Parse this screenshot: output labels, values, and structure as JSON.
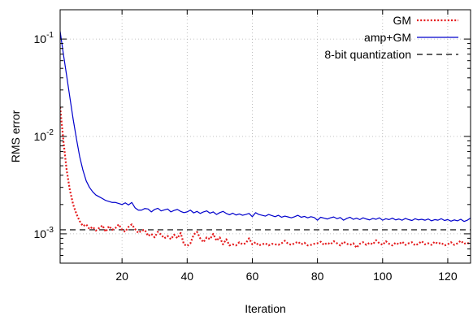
{
  "chart_data": {
    "type": "line",
    "title": "",
    "xlabel": "Iteration",
    "ylabel": "RMS error",
    "x_scale": "linear",
    "y_scale": "log",
    "xlim": [
      1,
      127
    ],
    "ylim": [
      0.0005,
      0.2
    ],
    "x_ticks": [
      20,
      40,
      60,
      80,
      100,
      120
    ],
    "x_tick_labels": [
      "20",
      "40",
      "60",
      "80",
      "100",
      "120"
    ],
    "y_ticks": [
      0.001,
      0.01,
      0.1
    ],
    "y_tick_labels": [
      {
        "base": "10",
        "exp": "-3"
      },
      {
        "base": "10",
        "exp": "-2"
      },
      {
        "base": "10",
        "exp": "-1"
      }
    ],
    "grid": true,
    "legend_position": "top-right",
    "series": [
      {
        "name": "GM",
        "color": "#e41a1c",
        "style": "dotted",
        "x": [
          1,
          2,
          3,
          4,
          5,
          6,
          7,
          8,
          9,
          10,
          11,
          12,
          13,
          14,
          15,
          16,
          17,
          18,
          19,
          20,
          21,
          22,
          23,
          24,
          25,
          26,
          27,
          28,
          29,
          30,
          31,
          32,
          33,
          34,
          35,
          36,
          37,
          38,
          39,
          40,
          41,
          42,
          43,
          44,
          45,
          46,
          47,
          48,
          49,
          50,
          51,
          52,
          53,
          54,
          55,
          56,
          57,
          58,
          59,
          60,
          61,
          62,
          63,
          64,
          65,
          66,
          67,
          68,
          69,
          70,
          71,
          72,
          73,
          74,
          75,
          76,
          77,
          78,
          79,
          80,
          81,
          82,
          83,
          84,
          85,
          86,
          87,
          88,
          89,
          90,
          91,
          92,
          93,
          94,
          95,
          96,
          97,
          98,
          99,
          100,
          101,
          102,
          103,
          104,
          105,
          106,
          107,
          108,
          109,
          110,
          111,
          112,
          113,
          114,
          115,
          116,
          117,
          118,
          119,
          120,
          121,
          122,
          123,
          124,
          125,
          126,
          127
        ],
        "values": [
          0.02,
          0.009,
          0.0045,
          0.0028,
          0.002,
          0.0016,
          0.00135,
          0.0012,
          0.00125,
          0.00112,
          0.00118,
          0.00108,
          0.00115,
          0.00122,
          0.00105,
          0.0012,
          0.0011,
          0.00115,
          0.00125,
          0.0011,
          0.00105,
          0.00118,
          0.00125,
          0.00112,
          0.00102,
          0.00108,
          0.0011,
          0.00095,
          0.001,
          0.00092,
          0.00105,
          0.00098,
          0.0009,
          0.00095,
          0.00088,
          0.00098,
          0.0009,
          0.00102,
          0.00078,
          0.00075,
          0.0008,
          0.00098,
          0.00105,
          0.0009,
          0.00082,
          0.00092,
          0.00088,
          0.001,
          0.00085,
          0.00092,
          0.00078,
          0.00088,
          0.00076,
          0.00078,
          0.00076,
          0.00082,
          0.00078,
          0.0008,
          0.0009,
          0.00078,
          0.00082,
          0.00076,
          0.00078,
          0.0008,
          0.00076,
          0.00079,
          0.00078,
          0.00077,
          0.0008,
          0.00085,
          0.00079,
          0.00077,
          0.0008,
          0.00083,
          0.00078,
          0.00081,
          0.00076,
          0.00077,
          0.00079,
          0.0008,
          0.00083,
          0.00077,
          0.00081,
          0.00078,
          0.00084,
          0.0008,
          0.00076,
          0.00083,
          0.00079,
          0.00077,
          0.0008,
          0.00072,
          0.00079,
          0.00082,
          0.00077,
          0.00081,
          0.00078,
          0.00086,
          0.0008,
          0.00077,
          0.00084,
          0.00079,
          0.00076,
          0.00081,
          0.00078,
          0.00083,
          0.00077,
          0.0008,
          0.00082,
          0.00076,
          0.00079,
          0.00084,
          0.00078,
          0.0008,
          0.00077,
          0.00083,
          0.00079,
          0.00081,
          0.00076,
          0.00078,
          0.00082,
          0.00077,
          0.0008,
          0.00085,
          0.00079,
          0.00081,
          0.00078
        ]
      },
      {
        "name": "amp+GM",
        "color": "#0000cc",
        "style": "solid",
        "x": [
          1,
          2,
          3,
          4,
          5,
          6,
          7,
          8,
          9,
          10,
          11,
          12,
          13,
          14,
          15,
          16,
          17,
          18,
          19,
          20,
          21,
          22,
          23,
          24,
          25,
          26,
          27,
          28,
          29,
          30,
          31,
          32,
          33,
          34,
          35,
          36,
          37,
          38,
          39,
          40,
          41,
          42,
          43,
          44,
          45,
          46,
          47,
          48,
          49,
          50,
          51,
          52,
          53,
          54,
          55,
          56,
          57,
          58,
          59,
          60,
          61,
          62,
          63,
          64,
          65,
          66,
          67,
          68,
          69,
          70,
          71,
          72,
          73,
          74,
          75,
          76,
          77,
          78,
          79,
          80,
          81,
          82,
          83,
          84,
          85,
          86,
          87,
          88,
          89,
          90,
          91,
          92,
          93,
          94,
          95,
          96,
          97,
          98,
          99,
          100,
          101,
          102,
          103,
          104,
          105,
          106,
          107,
          108,
          109,
          110,
          111,
          112,
          113,
          114,
          115,
          116,
          117,
          118,
          119,
          120,
          121,
          122,
          123,
          124,
          125,
          126,
          127
        ],
        "values": [
          0.12,
          0.07,
          0.042,
          0.025,
          0.015,
          0.0095,
          0.0062,
          0.0045,
          0.0035,
          0.003,
          0.0027,
          0.0025,
          0.0024,
          0.0023,
          0.0022,
          0.00215,
          0.0021,
          0.0021,
          0.00205,
          0.002,
          0.00208,
          0.00198,
          0.0021,
          0.00185,
          0.00175,
          0.00175,
          0.00182,
          0.0018,
          0.00168,
          0.00178,
          0.00183,
          0.00172,
          0.00176,
          0.0018,
          0.00168,
          0.00174,
          0.00178,
          0.0017,
          0.00165,
          0.00168,
          0.00175,
          0.00164,
          0.0017,
          0.00162,
          0.00168,
          0.00172,
          0.00163,
          0.00168,
          0.00158,
          0.00165,
          0.0017,
          0.00162,
          0.00157,
          0.00163,
          0.00156,
          0.0016,
          0.00155,
          0.00158,
          0.00162,
          0.0015,
          0.00165,
          0.00158,
          0.00155,
          0.00152,
          0.00158,
          0.00154,
          0.0015,
          0.00155,
          0.00148,
          0.00152,
          0.00149,
          0.00146,
          0.0015,
          0.00155,
          0.00148,
          0.00151,
          0.00146,
          0.0015,
          0.00147,
          0.00138,
          0.00148,
          0.00145,
          0.00142,
          0.00146,
          0.00149,
          0.00143,
          0.00147,
          0.00138,
          0.00144,
          0.00148,
          0.00141,
          0.00145,
          0.0014,
          0.00146,
          0.00142,
          0.00139,
          0.00144,
          0.00141,
          0.00146,
          0.00138,
          0.00143,
          0.0014,
          0.00145,
          0.00139,
          0.00142,
          0.00138,
          0.00144,
          0.0014,
          0.00137,
          0.00143,
          0.00139,
          0.00141,
          0.00138,
          0.00142,
          0.00136,
          0.0014,
          0.00138,
          0.00143,
          0.00137,
          0.0014,
          0.00135,
          0.00139,
          0.00136,
          0.00141,
          0.00134,
          0.00138,
          0.00145
        ]
      },
      {
        "name": "8-bit quantization",
        "color": "#000000",
        "style": "dashed",
        "x": [
          1,
          127
        ],
        "values": [
          0.0011,
          0.0011
        ]
      }
    ]
  }
}
